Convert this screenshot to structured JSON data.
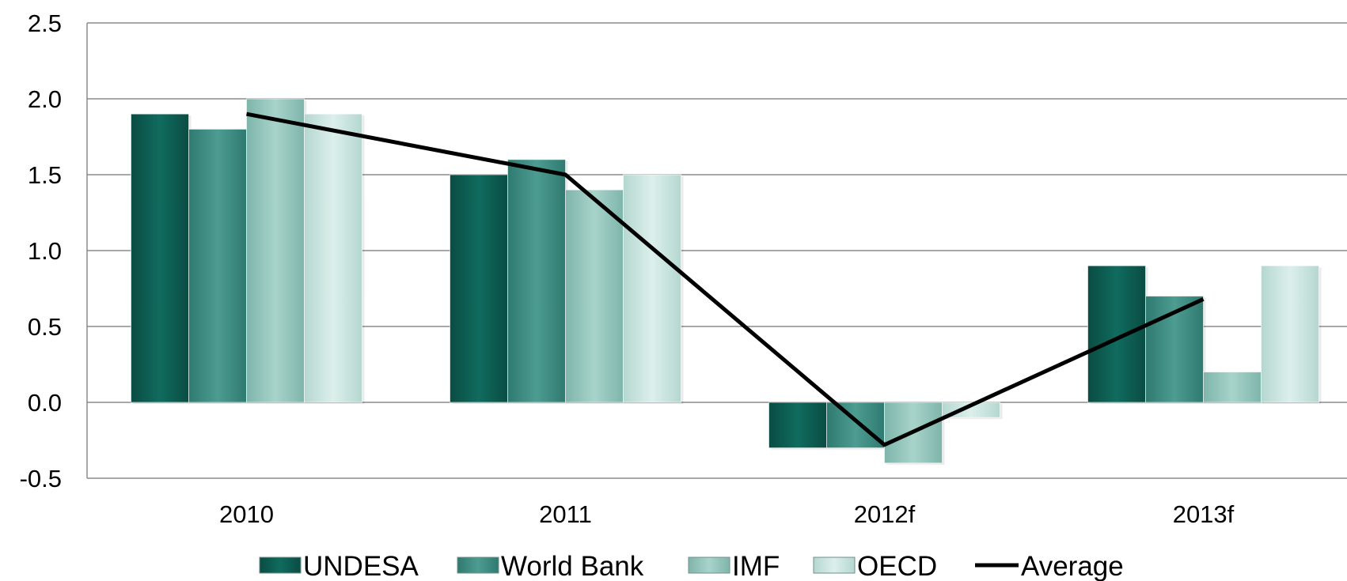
{
  "chart_data": {
    "type": "bar",
    "title": "",
    "xlabel": "",
    "ylabel": "",
    "categories": [
      "2010",
      "2011",
      "2012f",
      "2013f"
    ],
    "ylim": [
      -0.5,
      2.5
    ],
    "yticks": [
      "2.5",
      "2.0",
      "1.5",
      "1.0",
      "0.5",
      "0.0",
      "-0.5"
    ],
    "grid": true,
    "legend_position": "bottom",
    "series": [
      {
        "name": "UNDESA",
        "kind": "bar",
        "values": [
          1.9,
          1.5,
          -0.3,
          0.9
        ],
        "color": "#0d5e52"
      },
      {
        "name": "World Bank",
        "kind": "bar",
        "values": [
          1.8,
          1.6,
          -0.3,
          0.7
        ],
        "color": "#3e8e84"
      },
      {
        "name": "IMF",
        "kind": "bar",
        "values": [
          2.0,
          1.4,
          -0.4,
          0.2
        ],
        "color": "#92c5bc"
      },
      {
        "name": "OECD",
        "kind": "bar",
        "values": [
          1.9,
          1.5,
          -0.1,
          0.9
        ],
        "color": "#c8e2dd"
      },
      {
        "name": "Average",
        "kind": "line",
        "values": [
          1.9,
          1.5,
          -0.28,
          0.68
        ],
        "color": "#000000"
      }
    ]
  }
}
